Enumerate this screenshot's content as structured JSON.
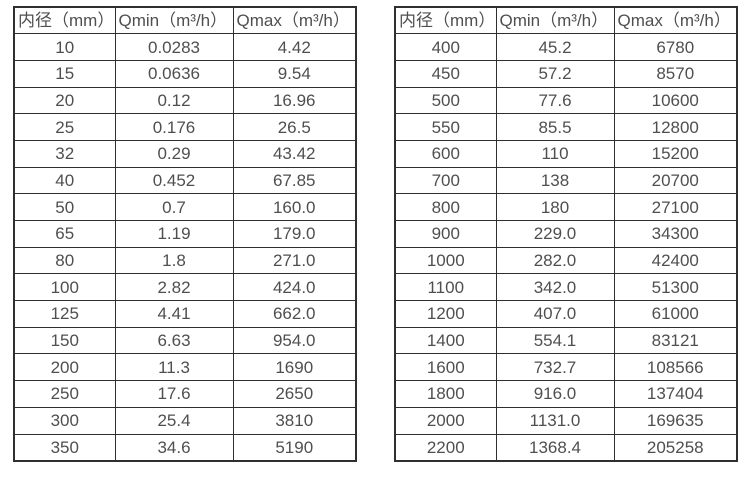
{
  "colors": {
    "border": "#2f2f2f",
    "text": "#4f4f4f",
    "bg": "#ffffff"
  },
  "columns": [
    "内径（mm）",
    "Qmin（m³/h）",
    "Qmax（m³/h）"
  ],
  "tables": [
    {
      "name": "small-diameters",
      "rows": [
        [
          "10",
          "0.0283",
          "4.42"
        ],
        [
          "15",
          "0.0636",
          "9.54"
        ],
        [
          "20",
          "0.12",
          "16.96"
        ],
        [
          "25",
          "0.176",
          "26.5"
        ],
        [
          "32",
          "0.29",
          "43.42"
        ],
        [
          "40",
          "0.452",
          "67.85"
        ],
        [
          "50",
          "0.7",
          "160.0"
        ],
        [
          "65",
          "1.19",
          "179.0"
        ],
        [
          "80",
          "1.8",
          "271.0"
        ],
        [
          "100",
          "2.82",
          "424.0"
        ],
        [
          "125",
          "4.41",
          "662.0"
        ],
        [
          "150",
          "6.63",
          "954.0"
        ],
        [
          "200",
          "11.3",
          "1690"
        ],
        [
          "250",
          "17.6",
          "2650"
        ],
        [
          "300",
          "25.4",
          "3810"
        ],
        [
          "350",
          "34.6",
          "5190"
        ]
      ]
    },
    {
      "name": "large-diameters",
      "rows": [
        [
          "400",
          "45.2",
          "6780"
        ],
        [
          "450",
          "57.2",
          "8570"
        ],
        [
          "500",
          "77.6",
          "10600"
        ],
        [
          "550",
          "85.5",
          "12800"
        ],
        [
          "600",
          "110",
          "15200"
        ],
        [
          "700",
          "138",
          "20700"
        ],
        [
          "800",
          "180",
          "27100"
        ],
        [
          "900",
          "229.0",
          "34300"
        ],
        [
          "1000",
          "282.0",
          "42400"
        ],
        [
          "1100",
          "342.0",
          "51300"
        ],
        [
          "1200",
          "407.0",
          "61000"
        ],
        [
          "1400",
          "554.1",
          "83121"
        ],
        [
          "1600",
          "732.7",
          "108566"
        ],
        [
          "1800",
          "916.0",
          "137404"
        ],
        [
          "2000",
          "1131.0",
          "169635"
        ],
        [
          "2200",
          "1368.4",
          "205258"
        ]
      ]
    }
  ]
}
